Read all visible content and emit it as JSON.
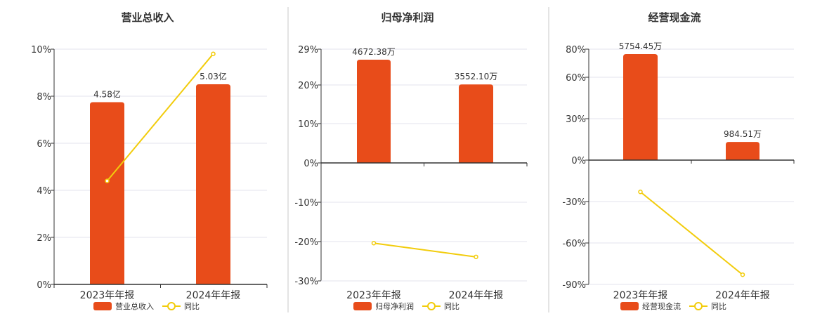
{
  "colors": {
    "bar": "#E84C1A",
    "line": "#F2CC0C",
    "grid": "#E3E3EE",
    "axis": "#333333",
    "text": "#333333"
  },
  "chart_data": [
    {
      "type": "bar",
      "title": "营业总收入",
      "categories": [
        "2023年年报",
        "2024年年报"
      ],
      "bar_series": {
        "name": "营业总收入",
        "values": [
          4.58,
          5.03
        ],
        "labels": [
          "4.58亿",
          "5.03亿"
        ]
      },
      "line_series": {
        "name": "同比",
        "values": [
          4.4,
          9.8
        ]
      },
      "yticks": [
        "10%",
        "8%",
        "6%",
        "4%",
        "2%",
        "0%"
      ],
      "ylim": [
        0,
        10
      ],
      "grid": true,
      "legend": "bottom"
    },
    {
      "type": "bar",
      "title": "归母净利润",
      "categories": [
        "2023年年报",
        "2024年年报"
      ],
      "bar_series": {
        "name": "归母净利润",
        "values": [
          4672.38,
          3552.1
        ],
        "labels": [
          "4672.38万",
          "3552.10万"
        ]
      },
      "line_series": {
        "name": "同比",
        "values": [
          -20.4,
          -23.9
        ]
      },
      "yticks": [
        "29%",
        "20%",
        "10%",
        "0%",
        "-10%",
        "-20%",
        "-30%"
      ],
      "ylim": [
        -30,
        29
      ],
      "grid": true,
      "legend": "bottom"
    },
    {
      "type": "bar",
      "title": "经营现金流",
      "categories": [
        "2023年年报",
        "2024年年报"
      ],
      "bar_series": {
        "name": "经营现金流",
        "values": [
          5754.45,
          984.51
        ],
        "labels": [
          "5754.45万",
          "984.51万"
        ]
      },
      "line_series": {
        "name": "同比",
        "values": [
          -23.0,
          -83.0
        ]
      },
      "yticks": [
        "80%",
        "60%",
        "30%",
        "0%",
        "-30%",
        "-60%",
        "-90%"
      ],
      "ylim": [
        -90,
        80
      ],
      "grid": true,
      "legend": "bottom"
    }
  ]
}
